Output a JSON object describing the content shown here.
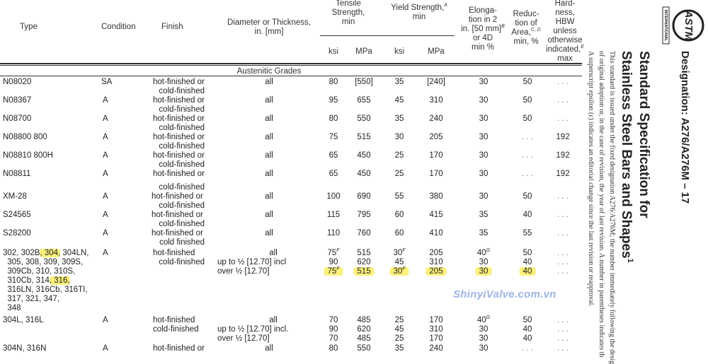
{
  "header": {
    "type": "Type",
    "condition": "Condition",
    "finish": "Finish",
    "diameter": [
      "Diameter or Thickness,",
      "in. [mm]"
    ],
    "tensile": [
      "Tensile",
      "Strength,",
      "min"
    ],
    "yield": {
      "text": "Yield Strength,",
      "sup": "A",
      "line2": "min"
    },
    "elongation": [
      {
        "t": "Elonga-"
      },
      {
        "t": "tion in 2"
      },
      {
        "t": "in. [50 mm]",
        "sup": "B"
      },
      {
        "t": "or 4D"
      },
      {
        "t": "min %"
      }
    ],
    "reduction": [
      {
        "t": "Reduc-"
      },
      {
        "t": "tion of"
      },
      {
        "t": "Area,",
        "sup": "C, D"
      },
      {
        "t": "min, %"
      }
    ],
    "hardness": [
      {
        "t": "Hard-"
      },
      {
        "t": "ness,"
      },
      {
        "t": "HBW"
      },
      {
        "t": "unless"
      },
      {
        "t": "otherwise"
      },
      {
        "t": "indicated,",
        "sup": "E"
      },
      {
        "t": "max"
      }
    ],
    "units": {
      "ts_ksi": "ksi",
      "ts_mpa": "MPa",
      "ys_ksi": "ksi",
      "ys_mpa": "MPa"
    }
  },
  "section_title": "Austenitic Grades",
  "rows": [
    {
      "type": [
        [
          {
            "t": "N08020"
          }
        ]
      ],
      "condition": "SA",
      "finish": [
        "hot-finished or",
        "cold-finished"
      ],
      "diameter": [
        "all"
      ],
      "ts_ksi": [
        {
          "v": "80"
        }
      ],
      "ts_mpa": [
        {
          "v": "[550]"
        }
      ],
      "ys_ksi": [
        {
          "v": "35"
        }
      ],
      "ys_mpa": [
        {
          "v": "[240]"
        }
      ],
      "elong": [
        {
          "v": "30"
        }
      ],
      "red": [
        {
          "v": "50"
        }
      ],
      "hard": [
        {
          "v": ". . ."
        }
      ]
    },
    {
      "type": [
        [
          {
            "t": "N08367"
          }
        ]
      ],
      "condition": "A",
      "finish": [
        "hot-finished or",
        "cold-finished"
      ],
      "diameter": [
        "all"
      ],
      "ts_ksi": [
        {
          "v": "95"
        }
      ],
      "ts_mpa": [
        {
          "v": "655"
        }
      ],
      "ys_ksi": [
        {
          "v": "45"
        }
      ],
      "ys_mpa": [
        {
          "v": "310"
        }
      ],
      "elong": [
        {
          "v": "30"
        }
      ],
      "red": [
        {
          "v": "50"
        }
      ],
      "hard": [
        {
          "v": ". . ."
        }
      ]
    },
    {
      "type": [
        [
          {
            "t": "N08700"
          }
        ]
      ],
      "condition": "A",
      "finish": [
        "hot-finished or",
        "cold-finished"
      ],
      "diameter": [
        "all"
      ],
      "ts_ksi": [
        {
          "v": "80"
        }
      ],
      "ts_mpa": [
        {
          "v": "550"
        }
      ],
      "ys_ksi": [
        {
          "v": "35"
        }
      ],
      "ys_mpa": [
        {
          "v": "240"
        }
      ],
      "elong": [
        {
          "v": "30"
        }
      ],
      "red": [
        {
          "v": "50"
        }
      ],
      "hard": [
        {
          "v": ". . ."
        }
      ]
    },
    {
      "type": [
        [
          {
            "t": "N08800 800"
          }
        ]
      ],
      "condition": "A",
      "finish": [
        "hot-finished or",
        "cold-finished"
      ],
      "diameter": [
        "all"
      ],
      "ts_ksi": [
        {
          "v": "75"
        }
      ],
      "ts_mpa": [
        {
          "v": "515"
        }
      ],
      "ys_ksi": [
        {
          "v": "30"
        }
      ],
      "ys_mpa": [
        {
          "v": "205"
        }
      ],
      "elong": [
        {
          "v": "30"
        }
      ],
      "red": [
        {
          "v": ". . ."
        }
      ],
      "hard": [
        {
          "v": "192"
        }
      ]
    },
    {
      "type": [
        [
          {
            "t": "N08810 800H"
          }
        ]
      ],
      "condition": "A",
      "finish": [
        "hot-finished or",
        "cold-finished"
      ],
      "diameter": [
        "all"
      ],
      "ts_ksi": [
        {
          "v": "65"
        }
      ],
      "ts_mpa": [
        {
          "v": "450"
        }
      ],
      "ys_ksi": [
        {
          "v": "25"
        }
      ],
      "ys_mpa": [
        {
          "v": "170"
        }
      ],
      "elong": [
        {
          "v": "30"
        }
      ],
      "red": [
        {
          "v": ". . ."
        }
      ],
      "hard": [
        {
          "v": "192"
        }
      ]
    },
    {
      "type": [
        [
          {
            "t": "N08811"
          }
        ]
      ],
      "condition": "A",
      "finish": [
        "hot-finished or",
        "cold-finished"
      ],
      "diameter": [
        "all"
      ],
      "ts_ksi": [
        {
          "v": "65"
        }
      ],
      "ts_mpa": [
        {
          "v": "450"
        }
      ],
      "ys_ksi": [
        {
          "v": "25"
        }
      ],
      "ys_mpa": [
        {
          "v": "170"
        }
      ],
      "elong": [
        {
          "v": "30"
        }
      ],
      "red": [
        {
          "v": ". . ."
        }
      ],
      "hard": [
        {
          "v": "192"
        }
      ]
    },
    {
      "type": [
        [
          {
            "t": "XM-28"
          }
        ]
      ],
      "condition": "A",
      "finish": [
        "hot-finished or",
        "cold-finished"
      ],
      "diameter": [
        "all"
      ],
      "ts_ksi": [
        {
          "v": "100"
        }
      ],
      "ts_mpa": [
        {
          "v": "690"
        }
      ],
      "ys_ksi": [
        {
          "v": "55"
        }
      ],
      "ys_mpa": [
        {
          "v": "380"
        }
      ],
      "elong": [
        {
          "v": "30"
        }
      ],
      "red": [
        {
          "v": "50"
        }
      ],
      "hard": [
        {
          "v": ". . ."
        }
      ]
    },
    {
      "type": [
        [
          {
            "t": "S24565"
          }
        ]
      ],
      "condition": "A",
      "finish": [
        "hot-finished or",
        "cold-finished"
      ],
      "diameter": [
        "all"
      ],
      "ts_ksi": [
        {
          "v": "115"
        }
      ],
      "ts_mpa": [
        {
          "v": "795"
        }
      ],
      "ys_ksi": [
        {
          "v": "60"
        }
      ],
      "ys_mpa": [
        {
          "v": "415"
        }
      ],
      "elong": [
        {
          "v": "35"
        }
      ],
      "red": [
        {
          "v": "40"
        }
      ],
      "hard": [
        {
          "v": ". . ."
        }
      ]
    },
    {
      "type": [
        [
          {
            "t": "S28200"
          }
        ]
      ],
      "condition": "A",
      "finish": [
        "hot-finished or",
        "cold finished"
      ],
      "diameter": [
        "all"
      ],
      "ts_ksi": [
        {
          "v": "110"
        }
      ],
      "ts_mpa": [
        {
          "v": "760"
        }
      ],
      "ys_ksi": [
        {
          "v": "60"
        }
      ],
      "ys_mpa": [
        {
          "v": "410"
        }
      ],
      "elong": [
        {
          "v": "35"
        }
      ],
      "red": [
        {
          "v": "55"
        }
      ],
      "hard": [
        {
          "v": ". . ."
        }
      ]
    },
    {
      "type": [
        [
          {
            "t": "302, 302B"
          },
          {
            "t": ", 304,",
            "hl": true
          },
          {
            "t": " 304LN,"
          }
        ],
        [
          {
            "t": "  305, 308, 309, 309S,"
          }
        ],
        [
          {
            "t": "  309Cb, 310, 310S,"
          }
        ],
        [
          {
            "t": "  310Cb, 314"
          },
          {
            "t": ", 316,",
            "hl": true
          }
        ],
        [
          {
            "t": "  316LN, 316Cb, 316TI,"
          }
        ],
        [
          {
            "t": "  317, 321, 347,"
          }
        ],
        [
          {
            "t": "  348"
          }
        ]
      ],
      "condition": "A",
      "finish": [
        "hot-finished",
        "cold-finished"
      ],
      "finish_style": "split",
      "diameter": [
        "all",
        "up to ½ [12.70] incl",
        "over ½ [12.70]"
      ],
      "ts_ksi": [
        {
          "v": "75",
          "sup": "F"
        },
        {
          "v": "90"
        },
        {
          "v": "75",
          "sup": "F",
          "hl": true
        }
      ],
      "ts_mpa": [
        {
          "v": "515"
        },
        {
          "v": "620"
        },
        {
          "v": "515",
          "hl": true
        }
      ],
      "ys_ksi": [
        {
          "v": "30",
          "sup": "F"
        },
        {
          "v": "45"
        },
        {
          "v": "30",
          "sup": "F",
          "hl": true
        }
      ],
      "ys_mpa": [
        {
          "v": "205"
        },
        {
          "v": "310"
        },
        {
          "v": "205",
          "hl": true
        }
      ],
      "elong": [
        {
          "v": "40",
          "sup": "G"
        },
        {
          "v": "30"
        },
        {
          "v": "30",
          "hl": true
        }
      ],
      "red": [
        {
          "v": "50"
        },
        {
          "v": "40"
        },
        {
          "v": "40",
          "hl": true
        }
      ],
      "hard": [
        {
          "v": ". . ."
        },
        {
          "v": ". . ."
        },
        {
          "v": ". . ."
        }
      ]
    },
    {
      "type": [
        [
          {
            "t": "304L, 316L"
          }
        ]
      ],
      "condition": "A",
      "finish": [
        "hot-finished",
        "cold-finished"
      ],
      "finish_style": "split",
      "diameter": [
        "all",
        "up to ½ [12.70] incl.",
        "over ½ [12.70]"
      ],
      "ts_ksi": [
        {
          "v": "70"
        },
        {
          "v": "90"
        },
        {
          "v": "70"
        }
      ],
      "ts_mpa": [
        {
          "v": "485"
        },
        {
          "v": "620"
        },
        {
          "v": "485"
        }
      ],
      "ys_ksi": [
        {
          "v": "25"
        },
        {
          "v": "45"
        },
        {
          "v": "25"
        }
      ],
      "ys_mpa": [
        {
          "v": "170"
        },
        {
          "v": "310"
        },
        {
          "v": "170"
        }
      ],
      "elong": [
        {
          "v": "40",
          "sup": "G"
        },
        {
          "v": "30"
        },
        {
          "v": "30"
        }
      ],
      "red": [
        {
          "v": "50"
        },
        {
          "v": "40"
        },
        {
          "v": "40"
        }
      ],
      "hard": [
        {
          "v": ". . ."
        },
        {
          "v": ". . ."
        },
        {
          "v": ". . ."
        }
      ]
    },
    {
      "type": [
        [
          {
            "t": "304N, 316N"
          }
        ]
      ],
      "condition": "A",
      "finish": [
        "hot-finished or"
      ],
      "diameter": [
        "all"
      ],
      "ts_ksi": [
        {
          "v": "80"
        }
      ],
      "ts_mpa": [
        {
          "v": "550"
        }
      ],
      "ys_ksi": [
        {
          "v": "35"
        }
      ],
      "ys_mpa": [
        {
          "v": "240"
        }
      ],
      "elong": [
        {
          "v": "30"
        }
      ],
      "red": [
        {
          "v": ". . ."
        }
      ],
      "hard": [
        {
          "v": ". . ."
        }
      ]
    }
  ],
  "side": {
    "designation": "Designation: A276/A276M – 17",
    "title_line1": "Standard Specification for",
    "title_line2": "Stainless Steel Bars and Shapes",
    "title_sup": "1",
    "para": [
      "This standard is issued under the fixed designation A276/A276M; the number immediately following the desig",
      "of original adoption or, in the case of revision, the year of last revision. A number in parentheses indicates th",
      "A superscript epsilon (ε) indicates an editorial change since the last revision or reapproval."
    ],
    "logo_text": "ASTM",
    "logo_subtext": "INTERNATIONAL"
  },
  "watermark": "ShinyiValve.com.vn",
  "colors": {
    "highlight": "#fbf07a",
    "watermark": "#9db4e6",
    "text": "#222222"
  }
}
